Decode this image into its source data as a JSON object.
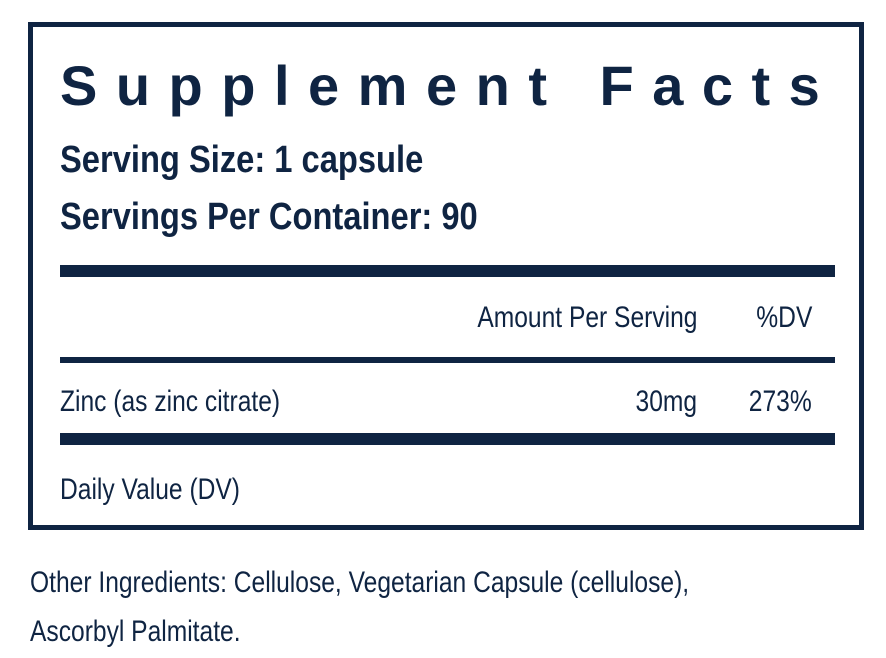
{
  "title": "Supplement Facts",
  "serving_size": "Serving Size: 1 capsule",
  "servings_per_container": "Servings Per Container: 90",
  "table": {
    "header": {
      "amount": "Amount Per Serving",
      "dv": "%DV"
    },
    "rows": [
      {
        "name": "Zinc (as zinc citrate)",
        "amount": "30mg",
        "dv": "273%"
      }
    ]
  },
  "footnote": "Daily Value (DV)",
  "other_ingredients": [
    "Other Ingredients: Cellulose, Vegetarian Capsule (cellulose),",
    "Ascorbyl Palmitate."
  ]
}
